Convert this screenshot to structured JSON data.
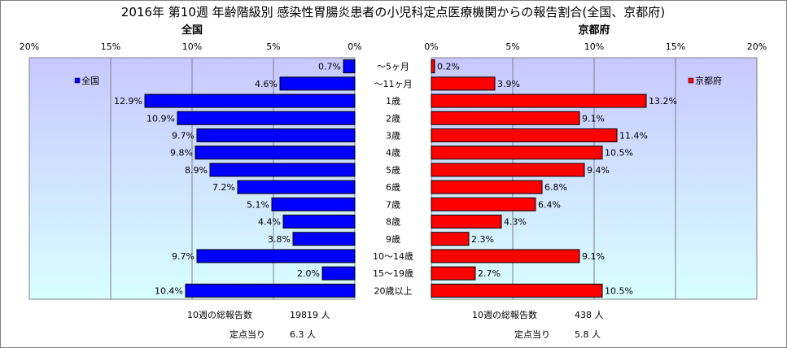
{
  "title": "2016年 第10週 年齢階級別 感染性胃腸炎患者の小児科定点医療機関からの報告割合(全国、京都府)",
  "categories": [
    "～5ヶ月",
    "～11ヶ月",
    "1歳",
    "2歳",
    "3歳",
    "4歳",
    "5歳",
    "6歳",
    "7歳",
    "8歳",
    "9歳",
    "10～14歳",
    "15～19歳",
    "20歳以上"
  ],
  "colors": {
    "national": "#0000ff",
    "kyoto": "#ff0000",
    "plot_bg_top": "#c8c8ff",
    "plot_bg_bottom": "#d8ffff"
  },
  "chart_data": [
    {
      "type": "bar",
      "orientation": "horizontal",
      "direction": "right-to-left",
      "title": "全国",
      "series": [
        {
          "name": "全国",
          "values": [
            0.7,
            4.6,
            12.9,
            10.9,
            9.7,
            9.8,
            8.9,
            7.2,
            5.1,
            4.4,
            3.8,
            9.7,
            2.0,
            10.4
          ]
        }
      ],
      "value_labels": [
        "0.7%",
        "4.6%",
        "12.9%",
        "10.9%",
        "9.7%",
        "9.8%",
        "8.9%",
        "7.2%",
        "5.1%",
        "4.4%",
        "3.8%",
        "9.7%",
        "2.0%",
        "10.4%"
      ],
      "xlim": [
        0,
        20
      ],
      "ticks": [
        20,
        15,
        10,
        5,
        0
      ],
      "tick_labels": [
        "20%",
        "15%",
        "10%",
        "5%",
        "0%"
      ],
      "grid": true,
      "legend": "top-left"
    },
    {
      "type": "bar",
      "orientation": "horizontal",
      "direction": "left-to-right",
      "title": "京都府",
      "series": [
        {
          "name": "京都府",
          "values": [
            0.2,
            3.9,
            13.2,
            9.1,
            11.4,
            10.5,
            9.4,
            6.8,
            6.4,
            4.3,
            2.3,
            9.1,
            2.7,
            10.5
          ]
        }
      ],
      "value_labels": [
        "0.2%",
        "3.9%",
        "13.2%",
        "9.1%",
        "11.4%",
        "10.5%",
        "9.4%",
        "6.8%",
        "6.4%",
        "4.3%",
        "2.3%",
        "9.1%",
        "2.7%",
        "10.5%"
      ],
      "xlim": [
        0,
        20
      ],
      "ticks": [
        0,
        5,
        10,
        15,
        20
      ],
      "tick_labels": [
        "0%",
        "5%",
        "10%",
        "15%",
        "20%"
      ],
      "grid": true,
      "legend": "top-right"
    }
  ],
  "footer": {
    "national_total_label": "10週の総報告数",
    "national_total_value": "19819 人",
    "national_per_label": "定点当り",
    "national_per_value": "6.3 人",
    "kyoto_total_label": "10週の総報告数",
    "kyoto_total_value": "438 人",
    "kyoto_per_label": "定点当り",
    "kyoto_per_value": "5.8 人"
  }
}
